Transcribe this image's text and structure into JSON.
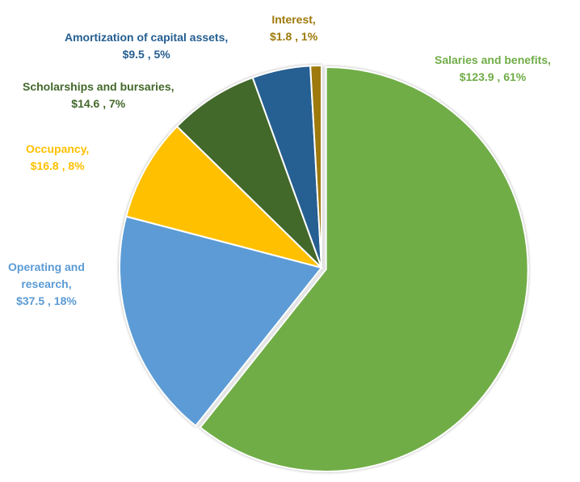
{
  "chart_data": {
    "type": "pie",
    "start_angle_deg": 0,
    "direction": "clockwise",
    "slices": [
      {
        "category": "Salaries and benefits,",
        "value_text": "$123.9 , 61%",
        "value": 123.9,
        "percent": 61,
        "color": "#70AD47",
        "exploded": true
      },
      {
        "category": "Operating and",
        "category2": "research,",
        "value_text": "$37.5 , 18%",
        "value": 37.5,
        "percent": 18,
        "color": "#5B9BD5",
        "exploded": false
      },
      {
        "category": "Occupancy,",
        "value_text": "$16.8 , 8%",
        "value": 16.8,
        "percent": 8,
        "color": "#FFC000",
        "exploded": false
      },
      {
        "category": "Scholarships and bursaries,",
        "value_text": "$14.6 , 7%",
        "value": 14.6,
        "percent": 7,
        "color": "#43682B",
        "exploded": false
      },
      {
        "category": "Amortization of capital assets,",
        "value_text": "$9.5 , 5%",
        "value": 9.5,
        "percent": 5,
        "color": "#255E91",
        "exploded": false
      },
      {
        "category": "Interest,",
        "value_text": "$1.8 , 1%",
        "value": 1.8,
        "percent": 1,
        "color": "#9E7A0B",
        "exploded": false
      }
    ],
    "label_colors": [
      "#70AD47",
      "#5B9BD5",
      "#FFC000",
      "#43682B",
      "#255E91",
      "#9E7A0B"
    ],
    "legend": "none"
  }
}
